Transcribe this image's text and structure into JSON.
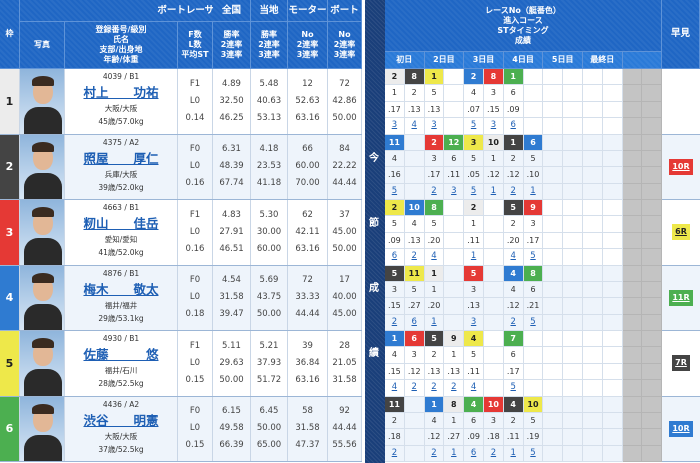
{
  "header": {
    "waku": "枠",
    "racer": "ボートレーサー",
    "photo": "写真",
    "info": "登録番号/級別\n氏名\n支部/出身地\n年齢/体重",
    "f": "F数\nL数\n平均ST",
    "national": "全国",
    "national_sub": "勝率\n2連率\n3連率",
    "local": "当地",
    "local_sub": "勝率\n2連率\n3連率",
    "motor": "モーター",
    "motor_sub": "No\n2連率\n3連率",
    "boat": "ボート",
    "boat_sub": "No\n2連率\n3連率",
    "race_info": "レースNo（艇番色）\n進入コース\nSTタイミング\n成績",
    "hayami": "早見",
    "days": [
      "初日",
      "2日目",
      "3日目",
      "4日目",
      "5日目",
      "最終日",
      ""
    ],
    "side_label": [
      "今",
      "節",
      "成",
      "績"
    ]
  },
  "colors": {
    "white": "#ececec",
    "black": "#444444",
    "red": "#e53935",
    "blue": "#2f7bd1",
    "yellow": "#eee84a",
    "green": "#4caf50"
  },
  "racers": [
    {
      "waku": "1",
      "color": "white",
      "reg": "4039 / B1",
      "name": "村上　　功祐",
      "branch": "大阪/大阪",
      "age": "45歳/57.0kg",
      "f": [
        "F1",
        "L0",
        "0.14"
      ],
      "national": [
        "4.89",
        "32.50",
        "46.25"
      ],
      "local": [
        "5.48",
        "40.63",
        "53.13"
      ],
      "motor": [
        "12",
        "52.63",
        "63.16"
      ],
      "boat": [
        "72",
        "42.86",
        "50.00"
      ],
      "races": [
        {
          "r": "2",
          "c": "white",
          "co": "1",
          "st": ".17",
          "res": "3"
        },
        {
          "r": "8",
          "c": "black",
          "co": "2",
          "st": ".13",
          "res": "4"
        },
        {
          "r": "1",
          "c": "yellow",
          "co": "5",
          "st": ".13",
          "res": "3"
        },
        null,
        {
          "r": "2",
          "c": "blue",
          "co": "4",
          "st": ".07",
          "res": "5"
        },
        {
          "r": "8",
          "c": "red",
          "co": "3",
          "st": ".15",
          "res": "3"
        },
        {
          "r": "1",
          "c": "green",
          "co": "6",
          "st": ".09",
          "res": "6"
        }
      ],
      "hayami": null
    },
    {
      "waku": "2",
      "color": "black",
      "reg": "4375 / A2",
      "name": "照屋　　厚仁",
      "branch": "兵庫/大阪",
      "age": "39歳/52.0kg",
      "f": [
        "F0",
        "L0",
        "0.16"
      ],
      "national": [
        "6.31",
        "48.39",
        "67.74"
      ],
      "local": [
        "4.18",
        "23.53",
        "41.18"
      ],
      "motor": [
        "66",
        "60.00",
        "70.00"
      ],
      "boat": [
        "84",
        "22.22",
        "44.44"
      ],
      "races": [
        {
          "r": "11",
          "c": "blue",
          "co": "4",
          "st": ".16",
          "res": "5"
        },
        null,
        {
          "r": "2",
          "c": "red",
          "co": "3",
          "st": ".17",
          "res": "2"
        },
        {
          "r": "12",
          "c": "green",
          "co": "6",
          "st": ".11",
          "res": "3"
        },
        {
          "r": "3",
          "c": "yellow",
          "co": "5",
          "st": ".05",
          "res": "5"
        },
        {
          "r": "10",
          "c": "white",
          "co": "1",
          "st": ".12",
          "res": "1"
        },
        {
          "r": "1",
          "c": "black",
          "co": "2",
          "st": ".12",
          "res": "2"
        },
        {
          "r": "6",
          "c": "blue",
          "co": "5",
          "st": ".10",
          "res": "1"
        }
      ],
      "hayami": {
        "label": "10R",
        "c": "red"
      }
    },
    {
      "waku": "3",
      "color": "red",
      "reg": "4663 / B1",
      "name": "籾山　　佳岳",
      "branch": "愛知/愛知",
      "age": "41歳/52.0kg",
      "f": [
        "F1",
        "L0",
        "0.16"
      ],
      "national": [
        "4.83",
        "27.91",
        "46.51"
      ],
      "local": [
        "5.30",
        "30.00",
        "60.00"
      ],
      "motor": [
        "62",
        "42.11",
        "63.16"
      ],
      "boat": [
        "37",
        "45.00",
        "50.00"
      ],
      "races": [
        {
          "r": "2",
          "c": "yellow",
          "co": "5",
          "st": ".09",
          "res": "6"
        },
        {
          "r": "10",
          "c": "blue",
          "co": "4",
          "st": ".13",
          "res": "2"
        },
        {
          "r": "8",
          "c": "green",
          "co": "5",
          "st": ".20",
          "res": "4"
        },
        null,
        {
          "r": "2",
          "c": "white",
          "co": "1",
          "st": ".11",
          "res": "1"
        },
        null,
        {
          "r": "5",
          "c": "black",
          "co": "2",
          "st": ".20",
          "res": "4"
        },
        {
          "r": "9",
          "c": "red",
          "co": "3",
          "st": ".17",
          "res": "5"
        }
      ],
      "hayami": {
        "label": "6R",
        "c": "yellow"
      }
    },
    {
      "waku": "4",
      "color": "blue",
      "reg": "4876 / B1",
      "name": "梅木　　敬太",
      "branch": "福井/福井",
      "age": "29歳/53.1kg",
      "f": [
        "F0",
        "L0",
        "0.18"
      ],
      "national": [
        "4.54",
        "31.58",
        "39.47"
      ],
      "local": [
        "5.69",
        "43.75",
        "50.00"
      ],
      "motor": [
        "72",
        "33.33",
        "44.44"
      ],
      "boat": [
        "17",
        "40.00",
        "45.00"
      ],
      "races": [
        {
          "r": "5",
          "c": "black",
          "co": "3",
          "st": ".15",
          "res": "2"
        },
        {
          "r": "11",
          "c": "yellow",
          "co": "5",
          "st": ".27",
          "res": "6"
        },
        {
          "r": "1",
          "c": "white",
          "co": "1",
          "st": ".20",
          "res": "1"
        },
        null,
        {
          "r": "5",
          "c": "red",
          "co": "3",
          "st": ".13",
          "res": "3"
        },
        null,
        {
          "r": "4",
          "c": "blue",
          "co": "4",
          "st": ".12",
          "res": "2"
        },
        {
          "r": "8",
          "c": "green",
          "co": "6",
          "st": ".21",
          "res": "5"
        }
      ],
      "hayami": {
        "label": "11R",
        "c": "green"
      }
    },
    {
      "waku": "5",
      "color": "yellow",
      "reg": "4930 / B1",
      "name": "佐藤　　　悠",
      "branch": "福井/石川",
      "age": "28歳/52.5kg",
      "f": [
        "F1",
        "L0",
        "0.15"
      ],
      "national": [
        "5.11",
        "29.63",
        "50.00"
      ],
      "local": [
        "5.21",
        "37.93",
        "51.72"
      ],
      "motor": [
        "39",
        "36.84",
        "63.16"
      ],
      "boat": [
        "28",
        "21.05",
        "31.58"
      ],
      "races": [
        {
          "r": "1",
          "c": "blue",
          "co": "4",
          "st": ".15",
          "res": "4"
        },
        {
          "r": "6",
          "c": "red",
          "co": "3",
          "st": ".12",
          "res": "2"
        },
        {
          "r": "5",
          "c": "black",
          "co": "2",
          "st": ".13",
          "res": "2"
        },
        {
          "r": "9",
          "c": "white",
          "co": "1",
          "st": ".13",
          "res": "2"
        },
        {
          "r": "4",
          "c": "yellow",
          "co": "5",
          "st": ".11",
          "res": "4"
        },
        null,
        {
          "r": "7",
          "c": "green",
          "co": "6",
          "st": ".17",
          "res": "5"
        }
      ],
      "hayami": {
        "label": "7R",
        "c": "black"
      }
    },
    {
      "waku": "6",
      "color": "green",
      "reg": "4436 / A2",
      "name": "渋谷　　明憲",
      "branch": "大阪/大阪",
      "age": "37歳/52.5kg",
      "f": [
        "F0",
        "L0",
        "0.15"
      ],
      "national": [
        "6.15",
        "49.58",
        "66.39"
      ],
      "local": [
        "6.45",
        "50.00",
        "65.00"
      ],
      "motor": [
        "58",
        "31.58",
        "47.37"
      ],
      "boat": [
        "92",
        "44.44",
        "55.56"
      ],
      "races": [
        {
          "r": "11",
          "c": "black",
          "co": "2",
          "st": ".18",
          "res": "2"
        },
        null,
        {
          "r": "1",
          "c": "blue",
          "co": "4",
          "st": ".12",
          "res": "2"
        },
        {
          "r": "8",
          "c": "white",
          "co": "1",
          "st": ".27",
          "res": "1"
        },
        {
          "r": "4",
          "c": "green",
          "co": "6",
          "st": ".09",
          "res": "6"
        },
        {
          "r": "10",
          "c": "red",
          "co": "3",
          "st": ".18",
          "res": "2"
        },
        {
          "r": "4",
          "c": "black",
          "co": "2",
          "st": ".11",
          "res": "1"
        },
        {
          "r": "10",
          "c": "yellow",
          "co": "5",
          "st": ".19",
          "res": "5"
        }
      ],
      "hayami": {
        "label": "10R",
        "c": "blue"
      }
    }
  ]
}
